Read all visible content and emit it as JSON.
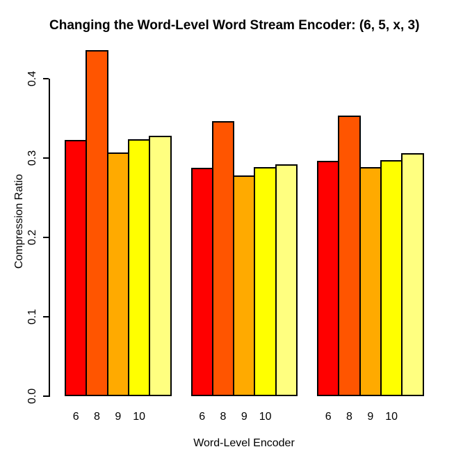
{
  "chart_data": {
    "type": "bar",
    "title": "Changing the Word-Level Word Stream Encoder: (6, 5, x, 3)",
    "xlabel": "Word-Level Encoder",
    "ylabel": "Compression Ratio",
    "ylim": [
      0,
      0.44
    ],
    "yticks": [
      0,
      0.1,
      0.2,
      0.3,
      0.4
    ],
    "ytick_labels": [
      "0.0",
      "0.1",
      "0.2",
      "0.3",
      "0.4"
    ],
    "grid": false,
    "legend_position": "none",
    "bar_labels": [
      "6",
      "8",
      "9",
      "10",
      ""
    ],
    "bar_colors": [
      "#FF0000",
      "#FF5500",
      "#FFAA00",
      "#FFFF00",
      "#FFFF80"
    ],
    "bar_border_color": "#000000",
    "groups": [
      {
        "values": [
          0.323,
          0.436,
          0.307,
          0.324,
          0.328
        ]
      },
      {
        "values": [
          0.288,
          0.347,
          0.278,
          0.289,
          0.292
        ]
      },
      {
        "values": [
          0.297,
          0.354,
          0.289,
          0.298,
          0.306
        ]
      }
    ]
  }
}
